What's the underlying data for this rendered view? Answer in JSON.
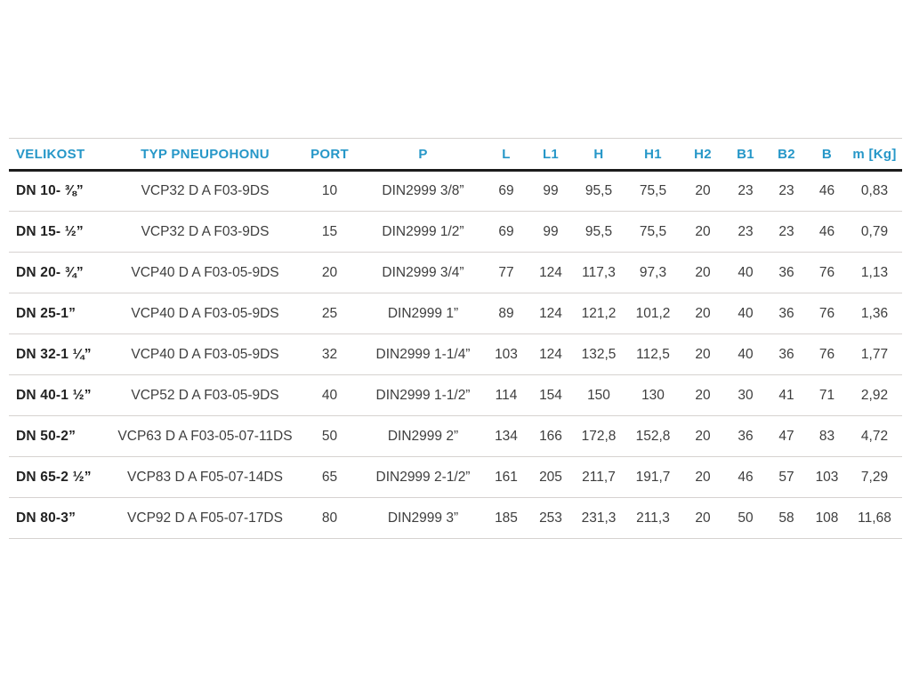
{
  "colors": {
    "accent": "#2697c8",
    "heavy_rule": "#1c1c1c",
    "light_rule": "#d6d2d0",
    "body_text": "#3e3e3e"
  },
  "table": {
    "columns": [
      "VELIKOST",
      "TYP PNEUPOHONU",
      "PORT",
      "P",
      "L",
      "L1",
      "H",
      "H1",
      "H2",
      "B1",
      "B2",
      "B",
      "m [Kg]"
    ],
    "rows": [
      [
        "DN 10- ⅜”",
        "VCP32 D A F03-9DS",
        "10",
        "DIN2999 3/8”",
        "69",
        "99",
        "95,5",
        "75,5",
        "20",
        "23",
        "23",
        "46",
        "0,83"
      ],
      [
        "DN 15- ½”",
        "VCP32 D A F03-9DS",
        "15",
        "DIN2999 1/2”",
        "69",
        "99",
        "95,5",
        "75,5",
        "20",
        "23",
        "23",
        "46",
        "0,79"
      ],
      [
        "DN 20- ¾”",
        "VCP40 D A F03-05-9DS",
        "20",
        "DIN2999 3/4”",
        "77",
        "124",
        "117,3",
        "97,3",
        "20",
        "40",
        "36",
        "76",
        "1,13"
      ],
      [
        "DN 25-1”",
        "VCP40 D A F03-05-9DS",
        "25",
        "DIN2999 1”",
        "89",
        "124",
        "121,2",
        "101,2",
        "20",
        "40",
        "36",
        "76",
        "1,36"
      ],
      [
        "DN 32-1 ¼”",
        "VCP40 D A F03-05-9DS",
        "32",
        "DIN2999 1-1/4”",
        "103",
        "124",
        "132,5",
        "112,5",
        "20",
        "40",
        "36",
        "76",
        "1,77"
      ],
      [
        "DN 40-1 ½”",
        "VCP52 D A F03-05-9DS",
        "40",
        "DIN2999 1-1/2”",
        "114",
        "154",
        "150",
        "130",
        "20",
        "30",
        "41",
        "71",
        "2,92"
      ],
      [
        "DN 50-2”",
        "VCP63 D A F03-05-07-11DS",
        "50",
        "DIN2999 2”",
        "134",
        "166",
        "172,8",
        "152,8",
        "20",
        "36",
        "47",
        "83",
        "4,72"
      ],
      [
        "DN 65-2 ½”",
        "VCP83 D A F05-07-14DS",
        "65",
        "DIN2999 2-1/2”",
        "161",
        "205",
        "211,7",
        "191,7",
        "20",
        "46",
        "57",
        "103",
        "7,29"
      ],
      [
        "DN 80-3”",
        "VCP92 D A F05-07-17DS",
        "80",
        "DIN2999 3”",
        "185",
        "253",
        "231,3",
        "211,3",
        "20",
        "50",
        "58",
        "108",
        "11,68"
      ]
    ]
  }
}
